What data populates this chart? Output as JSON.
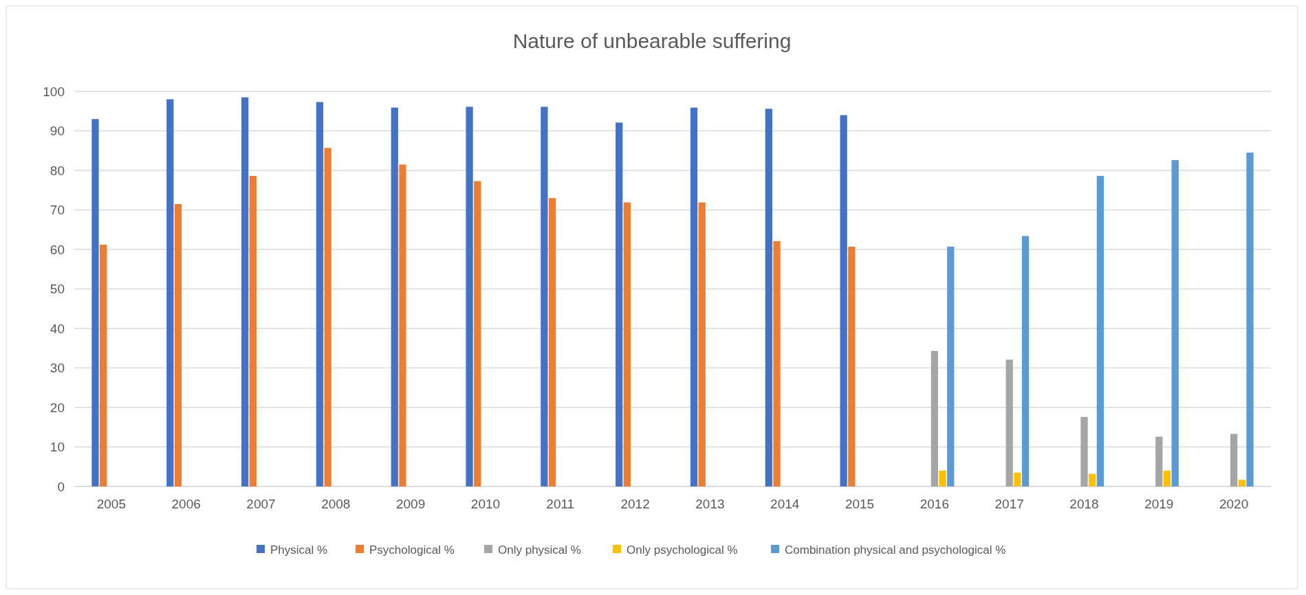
{
  "chart_data": {
    "type": "bar",
    "title": "Nature of unbearable suffering",
    "categories": [
      "2005",
      "2006",
      "2007",
      "2008",
      "2009",
      "2010",
      "2011",
      "2012",
      "2013",
      "2014",
      "2015",
      "2016",
      "2017",
      "2018",
      "2019",
      "2020"
    ],
    "series": [
      {
        "name": "Physical %",
        "color": "#4472c4",
        "values": [
          93.0,
          98.0,
          98.5,
          97.3,
          95.9,
          96.1,
          96.1,
          92.1,
          95.9,
          95.6,
          94.0,
          null,
          null,
          null,
          null,
          null
        ]
      },
      {
        "name": "Psychological %",
        "color": "#ed7d31",
        "values": [
          61.2,
          71.5,
          78.6,
          85.7,
          81.5,
          77.3,
          73.0,
          71.9,
          71.9,
          62.1,
          60.7,
          null,
          null,
          null,
          null,
          null
        ]
      },
      {
        "name": "Only physical %",
        "color": "#a5a5a5",
        "values": [
          null,
          null,
          null,
          null,
          null,
          null,
          null,
          null,
          null,
          null,
          null,
          34.3,
          32.1,
          17.6,
          12.6,
          13.3
        ]
      },
      {
        "name": "Only psychological %",
        "color": "#ffc000",
        "values": [
          null,
          null,
          null,
          null,
          null,
          null,
          null,
          null,
          null,
          null,
          null,
          4.0,
          3.5,
          3.2,
          4.0,
          1.7
        ]
      },
      {
        "name": "Combination physical and psychological %",
        "color": "#5b9bd5",
        "values": [
          null,
          null,
          null,
          null,
          null,
          null,
          null,
          null,
          null,
          null,
          null,
          60.7,
          63.4,
          78.6,
          82.6,
          84.5
        ]
      }
    ],
    "ylim": [
      0,
      100
    ],
    "yticks": [
      0,
      10,
      20,
      30,
      40,
      50,
      60,
      70,
      80,
      90,
      100
    ],
    "grid": "y",
    "legend": "bottom"
  }
}
